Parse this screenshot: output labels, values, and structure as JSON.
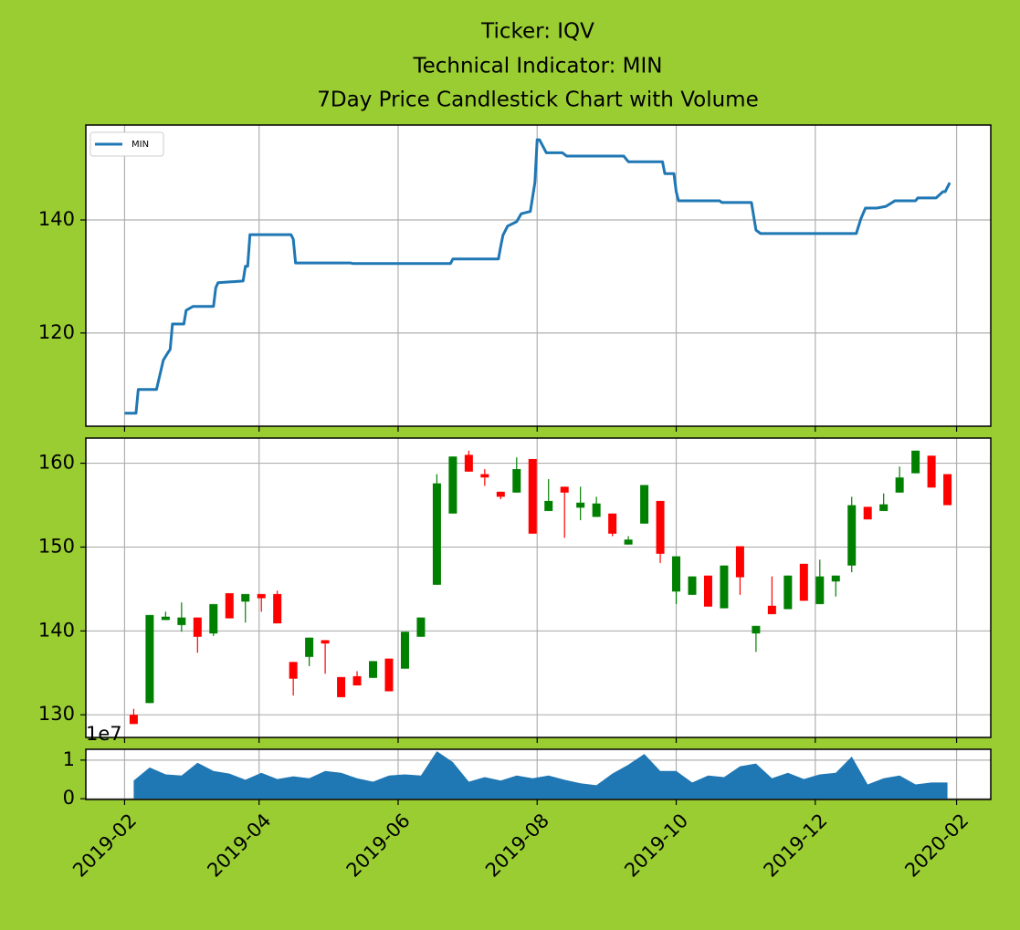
{
  "chart_data": [
    {
      "type": "line",
      "title": [
        "Ticker: IQV",
        "Technical Indicator: MIN",
        "7Day Price Candlestick Chart with Volume"
      ],
      "x": [
        "2019-02-01",
        "2019-02-06",
        "2019-02-07",
        "2019-02-15",
        "2019-02-18",
        "2019-02-20",
        "2019-02-21",
        "2019-02-22",
        "2019-02-27",
        "2019-02-28",
        "2019-03-03",
        "2019-03-12",
        "2019-03-13",
        "2019-03-14",
        "2019-03-25",
        "2019-03-26",
        "2019-03-27",
        "2019-03-28",
        "2019-04-15",
        "2019-04-16",
        "2019-04-17",
        "2019-05-11",
        "2019-05-12",
        "2019-06-24",
        "2019-06-25",
        "2019-07-15",
        "2019-07-16",
        "2019-07-17",
        "2019-07-19",
        "2019-07-23",
        "2019-07-25",
        "2019-07-29",
        "2019-07-31",
        "2019-08-01",
        "2019-08-02",
        "2019-08-05",
        "2019-08-12",
        "2019-08-14",
        "2019-09-08",
        "2019-09-10",
        "2019-09-25",
        "2019-09-26",
        "2019-09-30",
        "2019-10-01",
        "2019-10-02",
        "2019-10-20",
        "2019-10-21",
        "2019-11-03",
        "2019-11-05",
        "2019-11-07",
        "2019-12-19",
        "2019-12-21",
        "2019-12-23",
        "2019-12-28",
        "2020-01-01",
        "2020-01-05",
        "2020-01-14",
        "2020-01-15",
        "2020-01-23",
        "2020-01-26",
        "2020-01-27",
        "2020-01-29"
      ],
      "series": [
        {
          "name": "MIN",
          "color": "#1f77b4",
          "values": [
            105.8,
            105.8,
            110.0,
            110.0,
            115.2,
            116.5,
            117.1,
            121.6,
            121.6,
            124.0,
            124.7,
            124.7,
            128.0,
            128.9,
            129.2,
            131.8,
            131.8,
            137.4,
            137.4,
            136.6,
            132.4,
            132.4,
            132.3,
            132.3,
            133.1,
            133.1,
            135.3,
            137.3,
            138.9,
            139.7,
            141.1,
            141.5,
            146.6,
            154.2,
            154.2,
            151.9,
            151.9,
            151.3,
            151.3,
            150.3,
            150.3,
            148.2,
            148.2,
            145.0,
            143.4,
            143.4,
            143.1,
            143.1,
            138.2,
            137.6,
            137.6,
            140.2,
            142.1,
            142.1,
            142.4,
            143.4,
            143.4,
            143.9,
            143.9,
            145.0,
            145.0,
            146.6
          ]
        }
      ],
      "xlim": [
        "2019-01-15",
        "2020-02-16"
      ],
      "ylim": [
        103.5,
        156.8
      ],
      "yticks": [
        120,
        140
      ],
      "grid": true,
      "legend": "upper left"
    },
    {
      "type": "candlestick",
      "x": [
        "2019-02-05",
        "2019-02-12",
        "2019-02-19",
        "2019-02-26",
        "2019-03-05",
        "2019-03-12",
        "2019-03-19",
        "2019-03-26",
        "2019-04-02",
        "2019-04-09",
        "2019-04-16",
        "2019-04-23",
        "2019-04-30",
        "2019-05-07",
        "2019-05-14",
        "2019-05-21",
        "2019-05-28",
        "2019-06-04",
        "2019-06-11",
        "2019-06-18",
        "2019-06-25",
        "2019-07-02",
        "2019-07-09",
        "2019-07-16",
        "2019-07-23",
        "2019-07-30",
        "2019-08-06",
        "2019-08-13",
        "2019-08-20",
        "2019-08-27",
        "2019-09-03",
        "2019-09-10",
        "2019-09-17",
        "2019-09-24",
        "2019-10-01",
        "2019-10-08",
        "2019-10-15",
        "2019-10-22",
        "2019-10-29",
        "2019-11-05",
        "2019-11-12",
        "2019-11-19",
        "2019-11-26",
        "2019-12-03",
        "2019-12-10",
        "2019-12-17",
        "2019-12-24",
        "2019-12-31",
        "2020-01-07",
        "2020-01-14",
        "2020-01-21",
        "2020-01-28"
      ],
      "open": [
        130.0,
        131.4,
        141.3,
        140.7,
        141.6,
        139.7,
        144.5,
        143.5,
        144.4,
        144.4,
        136.3,
        136.9,
        138.9,
        134.5,
        134.6,
        134.4,
        136.7,
        135.5,
        139.3,
        145.5,
        154.0,
        161.0,
        158.7,
        156.6,
        156.5,
        160.5,
        154.3,
        157.2,
        154.7,
        153.6,
        154.0,
        150.3,
        152.8,
        155.5,
        144.7,
        144.3,
        146.6,
        142.7,
        150.1,
        139.7,
        143.0,
        142.6,
        148.0,
        143.2,
        145.9,
        147.8,
        154.8,
        154.3,
        156.5,
        158.8,
        160.9,
        158.7
      ],
      "high": [
        130.7,
        141.9,
        142.3,
        143.4,
        141.6,
        143.2,
        144.5,
        144.4,
        144.4,
        144.8,
        136.3,
        139.2,
        138.9,
        134.5,
        135.2,
        136.4,
        136.7,
        139.9,
        141.6,
        158.7,
        160.8,
        161.5,
        159.3,
        156.6,
        160.7,
        160.5,
        158.1,
        157.2,
        157.2,
        156.0,
        154.0,
        151.3,
        157.4,
        155.5,
        148.9,
        146.5,
        146.6,
        147.8,
        150.1,
        140.6,
        146.5,
        146.6,
        148.0,
        148.5,
        146.6,
        156.0,
        154.8,
        156.4,
        159.6,
        161.5,
        160.9,
        158.7
      ],
      "low": [
        128.9,
        131.4,
        141.3,
        139.9,
        137.4,
        139.4,
        141.5,
        141.0,
        142.3,
        140.9,
        132.3,
        135.8,
        134.9,
        132.1,
        133.5,
        134.4,
        132.8,
        135.5,
        139.3,
        145.5,
        154.0,
        159.0,
        157.3,
        155.7,
        156.5,
        151.6,
        154.3,
        151.1,
        153.2,
        153.6,
        151.3,
        150.3,
        152.8,
        148.1,
        143.2,
        144.3,
        142.9,
        142.7,
        144.3,
        137.5,
        142.0,
        142.6,
        143.6,
        143.2,
        144.1,
        147.0,
        153.3,
        154.3,
        156.5,
        158.8,
        157.1,
        155.0
      ],
      "close": [
        128.9,
        141.9,
        141.7,
        141.6,
        139.3,
        143.2,
        141.5,
        144.4,
        143.9,
        140.9,
        134.3,
        139.2,
        138.5,
        132.1,
        133.5,
        136.4,
        132.8,
        139.9,
        141.6,
        157.6,
        160.8,
        159.0,
        158.3,
        156.0,
        159.3,
        151.6,
        155.5,
        156.5,
        155.3,
        155.2,
        151.6,
        150.9,
        157.4,
        149.2,
        148.9,
        146.5,
        142.9,
        147.8,
        146.4,
        140.6,
        142.0,
        146.6,
        143.6,
        146.5,
        146.6,
        155.0,
        153.3,
        155.1,
        158.3,
        161.5,
        157.1,
        155.0
      ],
      "up_color": "#008000",
      "down_color": "#ff0000",
      "xlim": [
        "2019-01-15",
        "2020-02-16"
      ],
      "ylim": [
        127.3,
        163.0
      ],
      "yticks": [
        130,
        140,
        150,
        160
      ],
      "grid": true
    },
    {
      "type": "area",
      "x": [
        "2019-02-05",
        "2019-02-12",
        "2019-02-19",
        "2019-02-26",
        "2019-03-05",
        "2019-03-12",
        "2019-03-19",
        "2019-03-26",
        "2019-04-02",
        "2019-04-09",
        "2019-04-16",
        "2019-04-23",
        "2019-04-30",
        "2019-05-07",
        "2019-05-14",
        "2019-05-21",
        "2019-05-28",
        "2019-06-04",
        "2019-06-11",
        "2019-06-18",
        "2019-06-25",
        "2019-07-02",
        "2019-07-09",
        "2019-07-16",
        "2019-07-23",
        "2019-07-30",
        "2019-08-06",
        "2019-08-13",
        "2019-08-20",
        "2019-08-27",
        "2019-09-03",
        "2019-09-10",
        "2019-09-17",
        "2019-09-24",
        "2019-10-01",
        "2019-10-08",
        "2019-10-15",
        "2019-10-22",
        "2019-10-29",
        "2019-11-05",
        "2019-11-12",
        "2019-11-19",
        "2019-11-26",
        "2019-12-03",
        "2019-12-10",
        "2019-12-17",
        "2019-12-24",
        "2019-12-31",
        "2020-01-07",
        "2020-01-14",
        "2020-01-21",
        "2020-01-28"
      ],
      "values": [
        0.47,
        0.81,
        0.63,
        0.6,
        0.93,
        0.72,
        0.65,
        0.49,
        0.67,
        0.51,
        0.58,
        0.53,
        0.72,
        0.67,
        0.53,
        0.44,
        0.6,
        0.63,
        0.6,
        1.23,
        0.95,
        0.44,
        0.56,
        0.47,
        0.6,
        0.53,
        0.6,
        0.49,
        0.4,
        0.35,
        0.65,
        0.88,
        1.16,
        0.72,
        0.72,
        0.42,
        0.6,
        0.56,
        0.84,
        0.91,
        0.53,
        0.67,
        0.51,
        0.63,
        0.67,
        1.09,
        0.37,
        0.53,
        0.6,
        0.37,
        0.42,
        0.42
      ],
      "color": "#1f77b4",
      "xlim": [
        "2019-01-15",
        "2020-02-16"
      ],
      "ylim": [
        -0.02,
        1.28
      ],
      "yticks": [
        0,
        1
      ],
      "y_scale_label": "1e7",
      "xticks": [
        {
          "value": "2019-02",
          "label": "2019-02"
        },
        {
          "value": "2019-04",
          "label": "2019-04"
        },
        {
          "value": "2019-06",
          "label": "2019-06"
        },
        {
          "value": "2019-08",
          "label": "2019-08"
        },
        {
          "value": "2019-10",
          "label": "2019-10"
        },
        {
          "value": "2019-12",
          "label": "2019-12"
        },
        {
          "value": "2020-02",
          "label": "2020-02"
        }
      ],
      "grid": true
    }
  ]
}
